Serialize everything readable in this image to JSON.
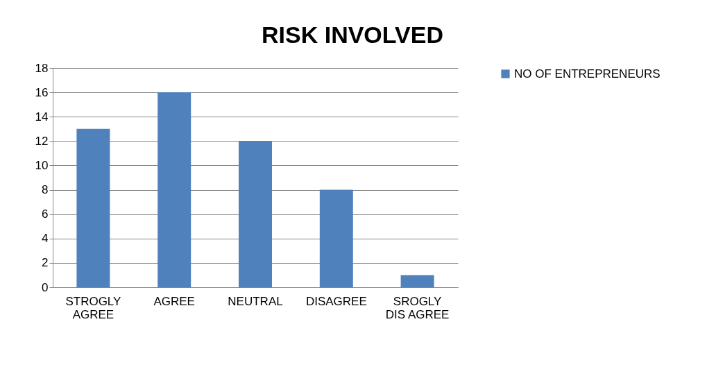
{
  "chart_data": {
    "type": "bar",
    "title": "RISK INVOLVED",
    "categories": [
      "STROGLY\nAGREE",
      "AGREE",
      "NEUTRAL",
      "DISAGREE",
      "SROGLY\nDIS AGREE"
    ],
    "series": [
      {
        "name": "NO OF ENTREPRENEURS",
        "color": "#4f81bd",
        "values": [
          13,
          16,
          12,
          8,
          1
        ]
      }
    ],
    "ylim": [
      0,
      18
    ],
    "yticks": [
      0,
      2,
      4,
      6,
      8,
      10,
      12,
      14,
      16,
      18
    ],
    "grid": "y",
    "legend": "right"
  }
}
